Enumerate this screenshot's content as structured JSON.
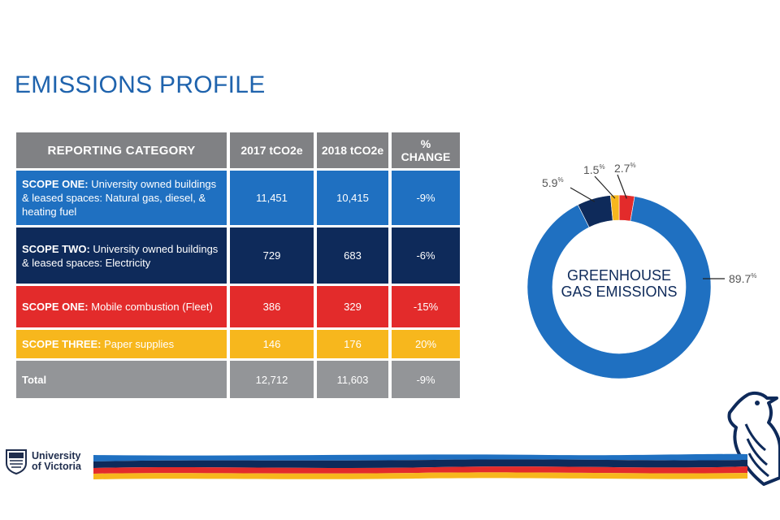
{
  "title": "EMISSIONS PROFILE",
  "table": {
    "headers": [
      "REPORTING CATEGORY",
      "2017 tCO2e",
      "2018 tCO2e",
      "%\nCHANGE"
    ],
    "header_change_line1": "%",
    "header_change_line2": "CHANGE",
    "rows": [
      {
        "scope": "SCOPE ONE:",
        "desc": " University owned buildings & leased spaces: Natural gas, diesel, & heating fuel",
        "y2017": "11,451",
        "y2018": "10,415",
        "change": "-9%",
        "color": "#1f70c1"
      },
      {
        "scope": "SCOPE TWO:",
        "desc": " University owned buildings & leased spaces: Electricity",
        "y2017": "729",
        "y2018": "683",
        "change": "-6%",
        "color": "#0e2a5a"
      },
      {
        "scope": "SCOPE ONE:",
        "desc": " Mobile combustion (Fleet)",
        "y2017": "386",
        "y2018": "329",
        "change": "-15%",
        "color": "#e32b2b"
      },
      {
        "scope": "SCOPE THREE:",
        "desc": " Paper supplies",
        "y2017": "146",
        "y2018": "176",
        "change": "20%",
        "color": "#f7b71d"
      },
      {
        "scope": "Total",
        "desc": "",
        "y2017": "12,712",
        "y2018": "11,603",
        "change": "-9%",
        "color": "#939598"
      }
    ]
  },
  "chart_data": {
    "type": "pie",
    "title": "GREENHOUSE GAS EMISSIONS",
    "title_line1": "GREENHOUSE",
    "title_line2": "GAS EMISSIONS",
    "donut": true,
    "slices": [
      {
        "value": 89.7,
        "label": "89.7%",
        "number": "89.7",
        "unit": "%",
        "color": "#1f70c1"
      },
      {
        "value": 5.9,
        "label": "5.9%",
        "number": "5.9",
        "unit": "%",
        "color": "#0e2a5a"
      },
      {
        "value": 1.5,
        "label": "1.5%",
        "number": "1.5",
        "unit": "%",
        "color": "#f7b71d"
      },
      {
        "value": 2.7,
        "label": "2.7%",
        "number": "2.7",
        "unit": "%",
        "color": "#e32b2b"
      }
    ]
  },
  "footer": {
    "logo_line1": "University",
    "logo_line2": "of Victoria",
    "band_colors": [
      "#1f70c1",
      "#0e2a5a",
      "#e32b2b",
      "#f7b71d"
    ]
  }
}
